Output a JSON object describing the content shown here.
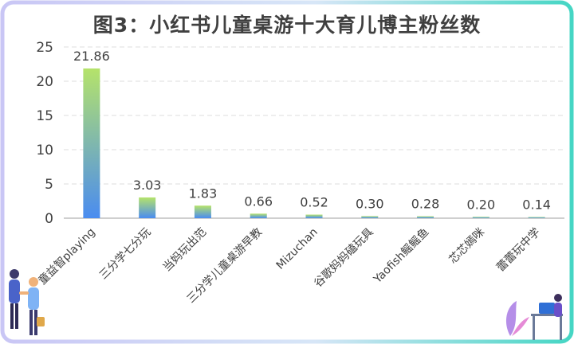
{
  "chart_data": {
    "type": "bar",
    "title": "图3：小红书儿童桌游十大育儿博主粉丝数",
    "categories": [
      "童益智playing",
      "三分学七分玩",
      "当妈玩出范",
      "三分学儿童桌游早教",
      "Mizuchan",
      "谷歌妈妈磕玩具",
      "Yaofish鳐鳐鱼",
      "芯芯嫣咪",
      "蕾蕾玩中学"
    ],
    "values": [
      21.86,
      3.03,
      1.83,
      0.66,
      0.52,
      0.3,
      0.28,
      0.2,
      0.14
    ],
    "value_labels": [
      "21.86",
      "3.03",
      "1.83",
      "0.66",
      "0.52",
      "0.30",
      "0.28",
      "0.20",
      "0.14"
    ],
    "ylim": [
      0,
      25
    ],
    "yticks": [
      0,
      5,
      10,
      15,
      20,
      25
    ],
    "grid": true,
    "xlabel": "",
    "ylabel": ""
  },
  "colors": {
    "bar_top": "#b5e36a",
    "bar_bottom": "#4a8cf0",
    "axis_text": "#404040",
    "grid": "#dcdcdc",
    "frame_left": "#c9c6f5",
    "frame_right": "#45d6c4"
  },
  "decorations": {
    "left": "business-people-handshake-illustration",
    "right": "person-at-laptop-illustration"
  }
}
